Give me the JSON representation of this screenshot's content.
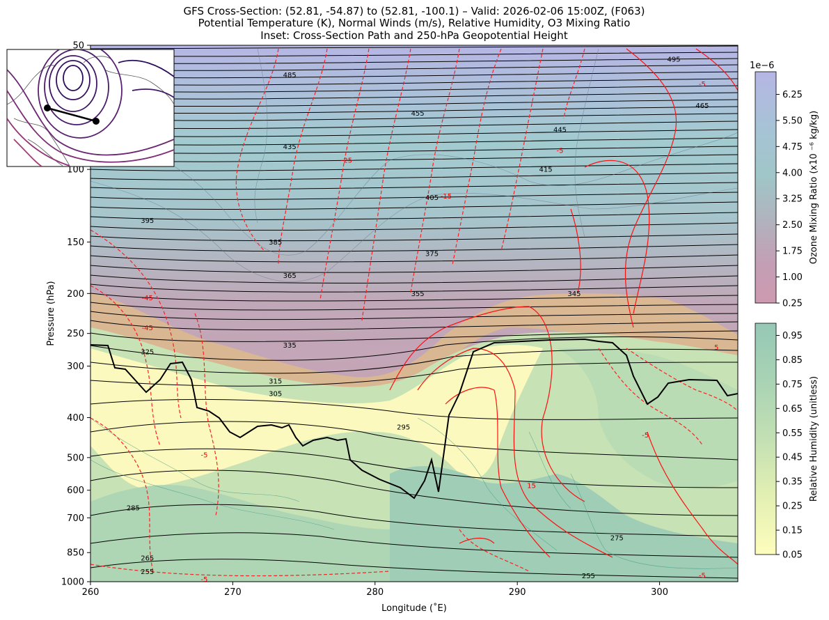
{
  "chart_data": {
    "type": "contour_cross_section",
    "title_lines": [
      "GFS Cross-Section: (52.81, -54.87) to (52.81, -100.1) – Valid: 2026-02-06 15:00Z, (F063)",
      "Potential Temperature (K), Normal Winds (m/s), Relative Humidity, O3 Mixing Ratio",
      "Inset: Cross-Section Path and 250-hPa Geopotential Height"
    ],
    "xlabel": "Longitude (˚E)",
    "ylabel": "Pressure (hPa)",
    "xlim": [
      260,
      305.5
    ],
    "ylim": [
      1000,
      50
    ],
    "y_scale": "log",
    "x_ticks": [
      260,
      270,
      280,
      290,
      300
    ],
    "x_tick_labels": [
      "260",
      "270",
      "280",
      "290",
      "300"
    ],
    "y_ticks": [
      1000,
      850,
      700,
      600,
      500,
      400,
      300,
      250,
      200,
      150,
      100,
      50
    ],
    "y_tick_labels": [
      "1000",
      "850",
      "700",
      "600",
      "500",
      "400",
      "300",
      "250",
      "200",
      "150",
      "100",
      "50"
    ],
    "theta_labels": [
      {
        "text": "495",
        "x": 301,
        "p": 54
      },
      {
        "text": "485",
        "x": 274,
        "p": 59
      },
      {
        "text": "465",
        "x": 303,
        "p": 70
      },
      {
        "text": "455",
        "x": 283,
        "p": 73
      },
      {
        "text": "445",
        "x": 293,
        "p": 80
      },
      {
        "text": "435",
        "x": 274,
        "p": 88
      },
      {
        "text": "415",
        "x": 292,
        "p": 100
      },
      {
        "text": "405",
        "x": 284,
        "p": 117
      },
      {
        "text": "395",
        "x": 264,
        "p": 133
      },
      {
        "text": "385",
        "x": 273,
        "p": 150
      },
      {
        "text": "375",
        "x": 284,
        "p": 160
      },
      {
        "text": "365",
        "x": 274,
        "p": 181
      },
      {
        "text": "355",
        "x": 283,
        "p": 200
      },
      {
        "text": "345",
        "x": 294,
        "p": 200
      },
      {
        "text": "335",
        "x": 274,
        "p": 267
      },
      {
        "text": "325",
        "x": 264,
        "p": 277
      },
      {
        "text": "315",
        "x": 273,
        "p": 326
      },
      {
        "text": "305",
        "x": 273,
        "p": 350
      },
      {
        "text": "295",
        "x": 282,
        "p": 422
      },
      {
        "text": "285",
        "x": 263,
        "p": 662
      },
      {
        "text": "275",
        "x": 297,
        "p": 782
      },
      {
        "text": "265",
        "x": 264,
        "p": 876
      },
      {
        "text": "255",
        "x": 264,
        "p": 945
      },
      {
        "text": "255",
        "x": 295,
        "p": 968
      }
    ],
    "wind_labels": [
      {
        "text": "-5",
        "x": 303,
        "p": 62
      },
      {
        "text": "-5",
        "x": 293,
        "p": 90
      },
      {
        "text": "-25",
        "x": 278,
        "p": 95
      },
      {
        "text": "-15",
        "x": 285,
        "p": 116
      },
      {
        "text": "-5",
        "x": 299,
        "p": 441
      },
      {
        "text": "-5",
        "x": 268,
        "p": 493
      },
      {
        "text": "-5",
        "x": 303,
        "p": 965
      },
      {
        "text": "-5",
        "x": 268,
        "p": 987
      },
      {
        "text": "15",
        "x": 291,
        "p": 585
      },
      {
        "text": "5",
        "x": 304,
        "p": 270
      },
      {
        "text": "-45",
        "x": 264,
        "p": 205
      },
      {
        "text": "-45",
        "x": 264,
        "p": 242
      }
    ],
    "colorbars": [
      {
        "label": "Ozone Mixing Ratio (x10 ⁻⁶ kg/kg)",
        "multiplier": "1e−6",
        "ticks": [
          "0.25",
          "1.00",
          "1.75",
          "2.50",
          "3.25",
          "4.00",
          "4.75",
          "5.50",
          "6.25"
        ],
        "range": [
          0.25,
          6.9
        ],
        "colors": [
          "#c89ab1",
          "#b8a0b6",
          "#aab2bf",
          "#9dc3c8",
          "#a4c9d4",
          "#aab5dc",
          "#b4b6e2"
        ]
      },
      {
        "label": "Relative Humidity (unitless)",
        "ticks": [
          "0.05",
          "0.15",
          "0.25",
          "0.35",
          "0.45",
          "0.55",
          "0.65",
          "0.75",
          "0.85",
          "0.95"
        ],
        "range": [
          0.05,
          1.0
        ],
        "colors": [
          "#fbfbbd",
          "#eaf3b4",
          "#d4e9b4",
          "#bfdfb3",
          "#aed6b4",
          "#9fcdb5",
          "#97c8b5"
        ]
      }
    ],
    "inset": {
      "path_start": {
        "lat": 52.81,
        "lon": -54.87
      },
      "path_end": {
        "lat": 52.81,
        "lon": -100.1
      }
    }
  }
}
